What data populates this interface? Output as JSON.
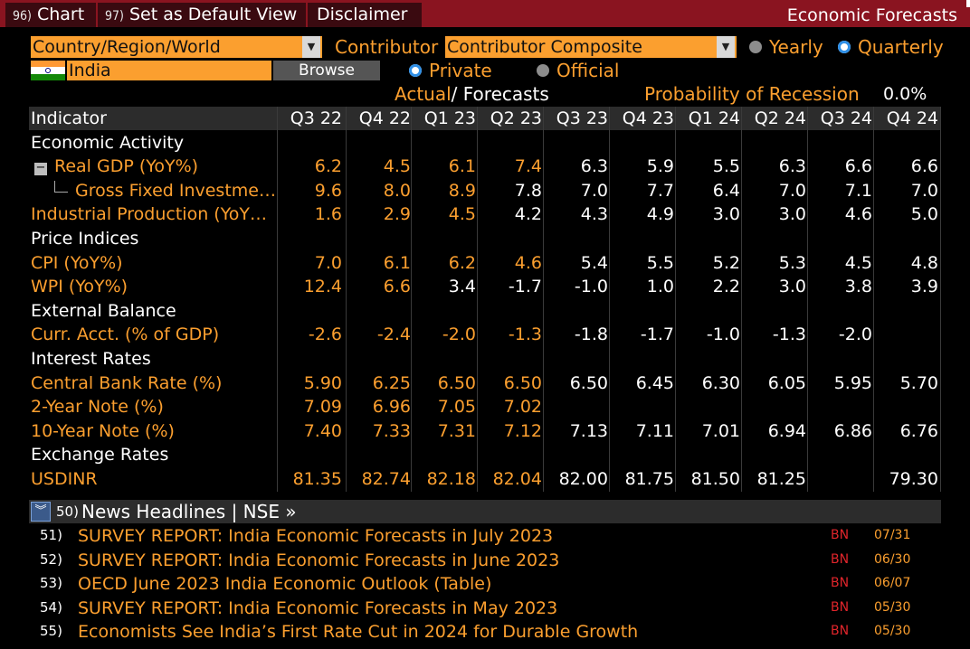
{
  "topbar": {
    "chart_num": "96)",
    "chart_label": "Chart",
    "default_num": "97)",
    "default_label": "Set as Default View",
    "disclaimer_label": "Disclaimer",
    "title": "Economic Forecasts"
  },
  "controls": {
    "region_select": "Country/Region/World",
    "contributor_label": "Contributor",
    "contributor_select": "Contributor Composite",
    "yearly_label": "Yearly",
    "quarterly_label": "Quarterly",
    "country_value": "India",
    "browse_label": "Browse",
    "private_label": "Private",
    "official_label": "Official",
    "actual_label": "Actual",
    "forecasts_label": "/ Forecasts",
    "recession_label": "Probability of Recession",
    "recession_value": "0.0%"
  },
  "table": {
    "header_label": "Indicator",
    "periods": [
      "Q3 22",
      "Q4 22",
      "Q1 23",
      "Q2 23",
      "Q3 23",
      "Q4 23",
      "Q1 24",
      "Q2 24",
      "Q3 24",
      "Q4 24"
    ],
    "rows": [
      {
        "type": "section",
        "label": "Economic Activity"
      },
      {
        "type": "data",
        "label": "Real GDP (YoY%)",
        "expand": "minus",
        "actual": 4,
        "values": [
          "6.2",
          "4.5",
          "6.1",
          "7.4",
          "6.3",
          "5.9",
          "5.5",
          "6.3",
          "6.6",
          "6.6"
        ]
      },
      {
        "type": "data",
        "label": "Gross Fixed Investme…",
        "child": true,
        "actual": 3,
        "values": [
          "9.6",
          "8.0",
          "8.9",
          "7.8",
          "7.0",
          "7.7",
          "6.4",
          "7.0",
          "7.1",
          "7.0"
        ]
      },
      {
        "type": "data",
        "label": "Industrial Production (YoY…",
        "actual": 3,
        "values": [
          "1.6",
          "2.9",
          "4.5",
          "4.2",
          "4.3",
          "4.9",
          "3.0",
          "3.0",
          "4.6",
          "5.0"
        ]
      },
      {
        "type": "section",
        "label": "Price Indices"
      },
      {
        "type": "data",
        "label": "CPI (YoY%)",
        "actual": 4,
        "values": [
          "7.0",
          "6.1",
          "6.2",
          "4.6",
          "5.4",
          "5.5",
          "5.2",
          "5.3",
          "4.5",
          "4.8"
        ]
      },
      {
        "type": "data",
        "label": "WPI (YoY%)",
        "actual": 2,
        "values": [
          "12.4",
          "6.6",
          "3.4",
          "-1.7",
          "-1.0",
          "1.0",
          "2.2",
          "3.0",
          "3.8",
          "3.9"
        ]
      },
      {
        "type": "section",
        "label": "External Balance"
      },
      {
        "type": "data",
        "label": "Curr. Acct. (% of GDP)",
        "actual": 4,
        "values": [
          "-2.6",
          "-2.4",
          "-2.0",
          "-1.3",
          "-1.8",
          "-1.7",
          "-1.0",
          "-1.3",
          "-2.0",
          ""
        ]
      },
      {
        "type": "section",
        "label": "Interest Rates"
      },
      {
        "type": "data",
        "label": "Central Bank Rate (%)",
        "actual": 4,
        "values": [
          "5.90",
          "6.25",
          "6.50",
          "6.50",
          "6.50",
          "6.45",
          "6.30",
          "6.05",
          "5.95",
          "5.70"
        ]
      },
      {
        "type": "data",
        "label": "2-Year Note (%)",
        "actual": 4,
        "values": [
          "7.09",
          "6.96",
          "7.05",
          "7.02",
          "",
          "",
          "",
          "",
          "",
          ""
        ]
      },
      {
        "type": "data",
        "label": "10-Year Note (%)",
        "actual": 4,
        "values": [
          "7.40",
          "7.33",
          "7.31",
          "7.12",
          "7.13",
          "7.11",
          "7.01",
          "6.94",
          "6.86",
          "6.76"
        ]
      },
      {
        "type": "section",
        "label": "Exchange Rates"
      },
      {
        "type": "data",
        "label": "USDINR",
        "actual": 4,
        "values": [
          "81.35",
          "82.74",
          "82.18",
          "82.04",
          "82.00",
          "81.75",
          "81.50",
          "81.25",
          "",
          "79.30"
        ]
      }
    ]
  },
  "news": {
    "header_num": "50)",
    "header_label": "News Headlines | NSE »",
    "items": [
      {
        "num": "51)",
        "text": "SURVEY REPORT: India Economic Forecasts in July 2023",
        "source": "BN",
        "date": "07/31"
      },
      {
        "num": "52)",
        "text": "SURVEY REPORT: India Economic Forecasts in June 2023",
        "source": "BN",
        "date": "06/30"
      },
      {
        "num": "53)",
        "text": "OECD June 2023 India Economic Outlook (Table)",
        "source": "BN",
        "date": "06/07"
      },
      {
        "num": "54)",
        "text": "SURVEY REPORT: India Economic Forecasts in May 2023",
        "source": "BN",
        "date": "05/30"
      },
      {
        "num": "55)",
        "text": "Economists See India’s First Rate Cut in 2024 for Durable Growth",
        "source": "BN",
        "date": "05/30"
      }
    ]
  },
  "colors": {
    "accent_orange": "#fb9f2f",
    "topbar_red": "#8a1420",
    "radio_blue": "#2f8fe6",
    "source_red": "#e0252b"
  }
}
